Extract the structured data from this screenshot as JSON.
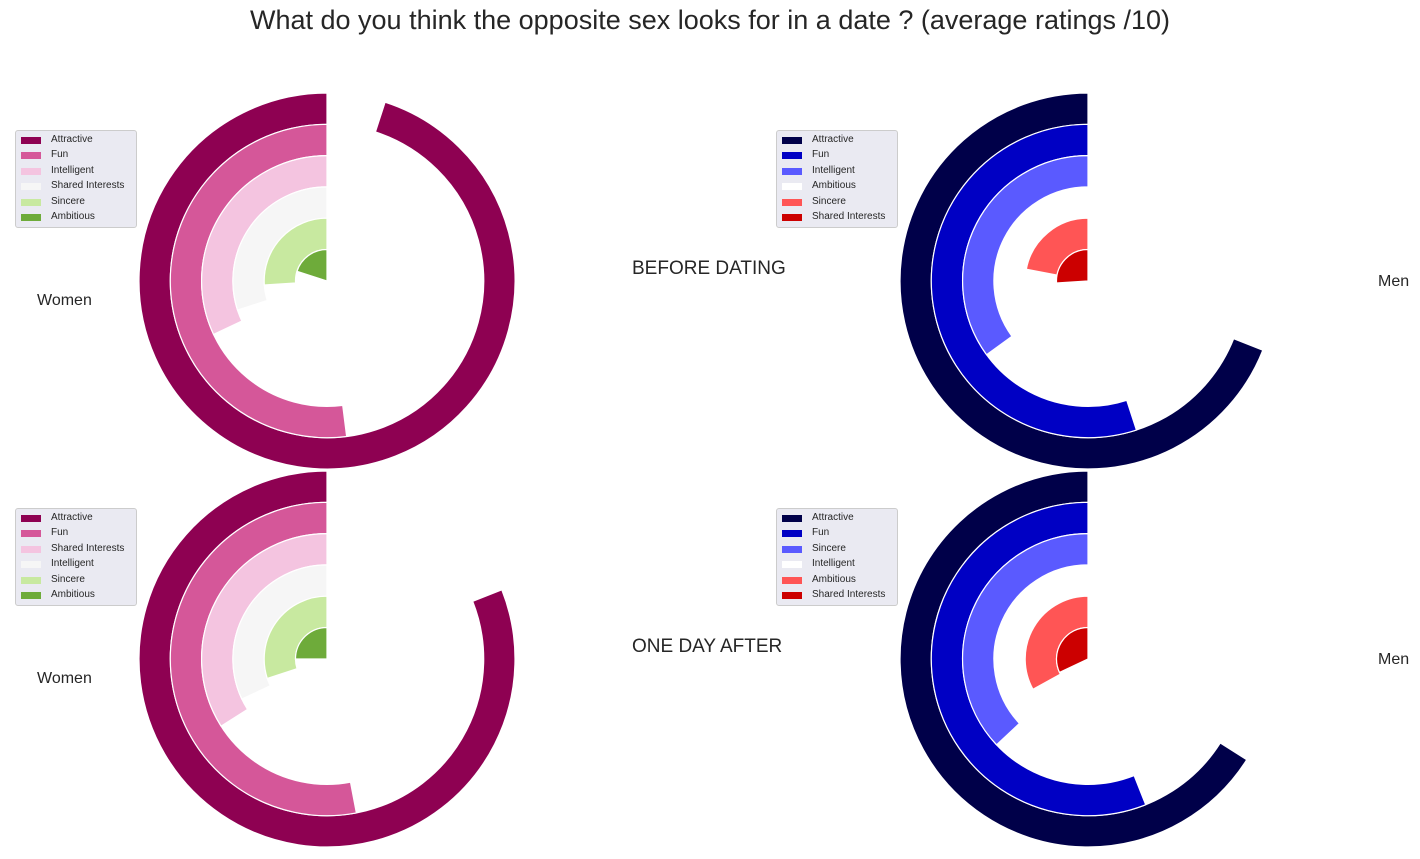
{
  "title": "What do you think the opposite sex looks for in a date ? (average ratings /10)",
  "row_labels": [
    "BEFORE DATING",
    "ONE DAY AFTER"
  ],
  "chart_data": [
    {
      "type": "radial-bar",
      "side_label": "Women",
      "row": "BEFORE DATING",
      "max": 10,
      "series": [
        {
          "name": "Attractive",
          "value": 9.5,
          "color": "#8e0152"
        },
        {
          "name": "Fun",
          "value": 5.2,
          "color": "#d55799"
        },
        {
          "name": "Intelligent",
          "value": 3.2,
          "color": "#f4c4e0"
        },
        {
          "name": "Shared Interests",
          "value": 3.0,
          "color": "#f6f6f6"
        },
        {
          "name": "Sincere",
          "value": 2.6,
          "color": "#c8e9a0"
        },
        {
          "name": "Ambitious",
          "value": 2.0,
          "color": "#6eab3a"
        }
      ]
    },
    {
      "type": "radial-bar",
      "side_label": "Men",
      "row": "BEFORE DATING",
      "max": 10,
      "series": [
        {
          "name": "Attractive",
          "value": 6.9,
          "color": "#000049"
        },
        {
          "name": "Fun",
          "value": 5.5,
          "color": "#0000c4"
        },
        {
          "name": "Intelligent",
          "value": 3.5,
          "color": "#5a5aff"
        },
        {
          "name": "Ambitious",
          "value": 0,
          "color": "#ffffff"
        },
        {
          "name": "Sincere",
          "value": 2.2,
          "color": "#ff5555"
        },
        {
          "name": "Shared Interests",
          "value": 2.6,
          "color": "#cc0000"
        }
      ]
    },
    {
      "type": "radial-bar",
      "side_label": "Women",
      "row": "ONE DAY AFTER",
      "max": 10,
      "series": [
        {
          "name": "Attractive",
          "value": 8.1,
          "color": "#8e0152"
        },
        {
          "name": "Fun",
          "value": 5.3,
          "color": "#d55799"
        },
        {
          "name": "Shared Interests",
          "value": 3.4,
          "color": "#f4c4e0"
        },
        {
          "name": "Intelligent",
          "value": 3.2,
          "color": "#f6f6f6"
        },
        {
          "name": "Sincere",
          "value": 3.0,
          "color": "#c8e9a0"
        },
        {
          "name": "Ambitious",
          "value": 2.5,
          "color": "#6eab3a"
        }
      ]
    },
    {
      "type": "radial-bar",
      "side_label": "Men",
      "row": "ONE DAY AFTER",
      "max": 10,
      "series": [
        {
          "name": "Attractive",
          "value": 6.6,
          "color": "#000049"
        },
        {
          "name": "Fun",
          "value": 5.6,
          "color": "#0000c4"
        },
        {
          "name": "Sincere",
          "value": 3.7,
          "color": "#5a5aff"
        },
        {
          "name": "Intelligent",
          "value": 0,
          "color": "#ffffff"
        },
        {
          "name": "Ambitious",
          "value": 3.3,
          "color": "#ff5555"
        },
        {
          "name": "Shared Interests",
          "value": 3.2,
          "color": "#cc0000"
        }
      ]
    }
  ]
}
